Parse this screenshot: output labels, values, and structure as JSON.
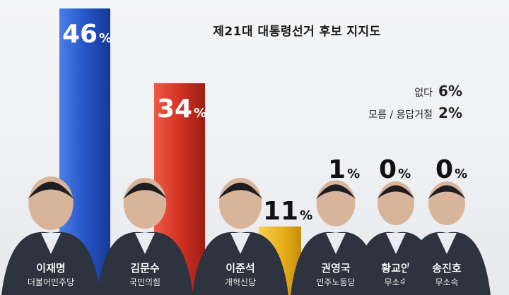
{
  "chart_data": {
    "type": "bar",
    "title": "제21대 대통령선거 후보 지지도",
    "categories": [
      "이재명",
      "김문수",
      "이준석",
      "권영국",
      "황교안",
      "송진호"
    ],
    "parties": [
      "더불어민주당",
      "국민의힘",
      "개혁신당",
      "민주노동당",
      "무소속",
      "무소속"
    ],
    "values": [
      46,
      34,
      11,
      1,
      0,
      0
    ],
    "value_labels": [
      "46",
      "34",
      "11",
      "1",
      "0",
      "0"
    ],
    "unit": "%",
    "ylim": [
      0,
      50
    ],
    "grid": false,
    "colors": [
      "#2d5fd0",
      "#d73a2c",
      "#e9b51f",
      "#2d5fd0",
      "#2d5fd0",
      "#2d5fd0"
    ],
    "others": [
      {
        "label": "없다",
        "value": "6",
        "unit": "%"
      },
      {
        "label": "모름 / 응답거절",
        "value": "2",
        "unit": "%"
      }
    ]
  }
}
